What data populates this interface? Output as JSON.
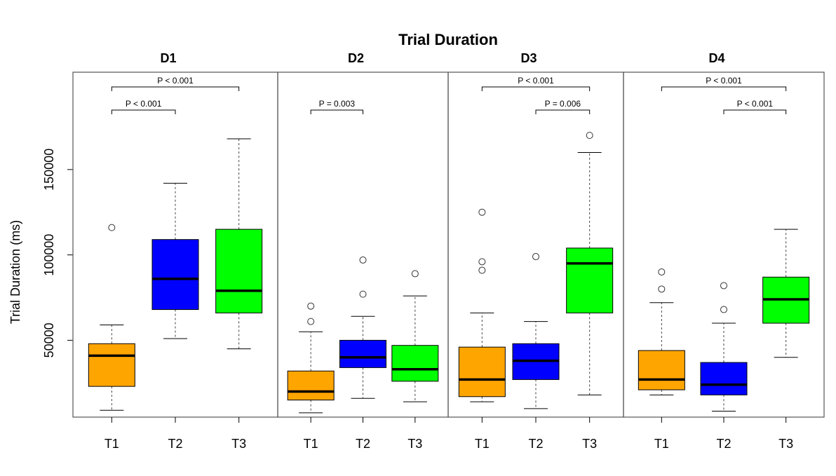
{
  "chart_data": {
    "type": "box",
    "title": "Trial Duration",
    "ylabel": "Trial Duration (ms)",
    "ylim": [
      5000,
      207000
    ],
    "yticks": [
      50000,
      100000,
      150000
    ],
    "ytick_labels": [
      "50000",
      "100000",
      "150000"
    ],
    "categories": [
      "T1",
      "T2",
      "T3"
    ],
    "colors": {
      "T1": "#ffa500",
      "T2": "#0000ff",
      "T3": "#00ff00"
    },
    "panels": [
      {
        "name": "D1",
        "boxes": [
          {
            "cat": "T1",
            "min": 9000,
            "q1": 23000,
            "median": 41000,
            "q3": 48000,
            "max": 59000,
            "outliers": [
              116000
            ]
          },
          {
            "cat": "T2",
            "min": 51000,
            "q1": 68000,
            "median": 86000,
            "q3": 109000,
            "max": 142000,
            "outliers": []
          },
          {
            "cat": "T3",
            "min": 45000,
            "q1": 66000,
            "median": 79000,
            "q3": 115000,
            "max": 168000,
            "outliers": []
          }
        ],
        "annotations": [
          {
            "label": "P < 0.001",
            "from": "T1",
            "to": "T3",
            "level": 2
          },
          {
            "label": "P < 0.001",
            "from": "T1",
            "to": "T2",
            "level": 1
          }
        ]
      },
      {
        "name": "D2",
        "boxes": [
          {
            "cat": "T1",
            "min": 7500,
            "q1": 15000,
            "median": 20000,
            "q3": 32000,
            "max": 55000,
            "outliers": [
              70000,
              61000
            ]
          },
          {
            "cat": "T2",
            "min": 16000,
            "q1": 34000,
            "median": 40000,
            "q3": 50000,
            "max": 64000,
            "outliers": [
              97000,
              77000
            ]
          },
          {
            "cat": "T3",
            "min": 14000,
            "q1": 26000,
            "median": 33000,
            "q3": 47000,
            "max": 76000,
            "outliers": [
              89000
            ]
          }
        ],
        "annotations": [
          {
            "label": "P = 0.003",
            "from": "T1",
            "to": "T2",
            "level": 1
          }
        ]
      },
      {
        "name": "D3",
        "boxes": [
          {
            "cat": "T1",
            "min": 14000,
            "q1": 17000,
            "median": 27000,
            "q3": 46000,
            "max": 66000,
            "outliers": [
              125000,
              96000,
              91000
            ]
          },
          {
            "cat": "T2",
            "min": 10000,
            "q1": 27000,
            "median": 38000,
            "q3": 48000,
            "max": 61000,
            "outliers": [
              99000
            ]
          },
          {
            "cat": "T3",
            "min": 18000,
            "q1": 66000,
            "median": 95000,
            "q3": 104000,
            "max": 160000,
            "outliers": [
              170000
            ]
          }
        ],
        "annotations": [
          {
            "label": "P < 0.001",
            "from": "T1",
            "to": "T3",
            "level": 2
          },
          {
            "label": "P = 0.006",
            "from": "T2",
            "to": "T3",
            "level": 1
          }
        ]
      },
      {
        "name": "D4",
        "boxes": [
          {
            "cat": "T1",
            "min": 18000,
            "q1": 21000,
            "median": 27000,
            "q3": 44000,
            "max": 72000,
            "outliers": [
              90000,
              80000
            ]
          },
          {
            "cat": "T2",
            "min": 8500,
            "q1": 18000,
            "median": 24000,
            "q3": 37000,
            "max": 60000,
            "outliers": [
              82000,
              68000
            ]
          },
          {
            "cat": "T3",
            "min": 40000,
            "q1": 60000,
            "median": 74000,
            "q3": 87000,
            "max": 115000,
            "outliers": []
          }
        ],
        "annotations": [
          {
            "label": "P < 0.001",
            "from": "T1",
            "to": "T3",
            "level": 2
          },
          {
            "label": "P < 0.001",
            "from": "T2",
            "to": "T3",
            "level": 1
          }
        ]
      }
    ]
  }
}
